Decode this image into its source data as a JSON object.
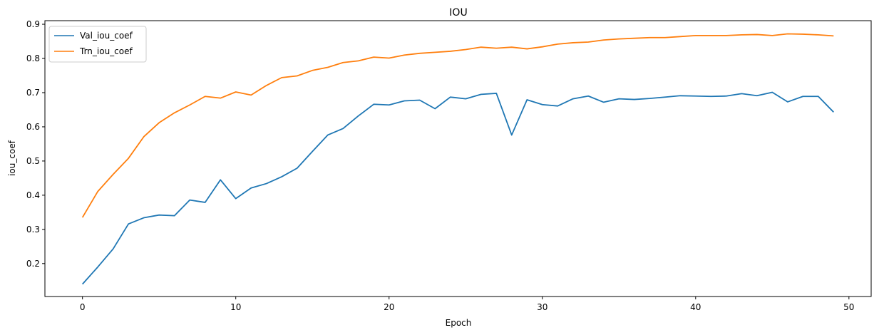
{
  "chart_data": {
    "type": "line",
    "title": "IOU",
    "xlabel": "Epoch",
    "ylabel": "iou_coef",
    "xlim": [
      -2.45,
      51.45
    ],
    "ylim": [
      0.1037,
      0.9105
    ],
    "xticks": [
      0,
      10,
      20,
      30,
      40,
      50
    ],
    "yticks": [
      0.2,
      0.3,
      0.4,
      0.5,
      0.6,
      0.7,
      0.8,
      0.9
    ],
    "grid": false,
    "legend_position": "upper-left",
    "x": [
      0,
      1,
      2,
      3,
      4,
      5,
      6,
      7,
      8,
      9,
      10,
      11,
      12,
      13,
      14,
      15,
      16,
      17,
      18,
      19,
      20,
      21,
      22,
      23,
      24,
      25,
      26,
      27,
      28,
      29,
      30,
      31,
      32,
      33,
      34,
      35,
      36,
      37,
      38,
      39,
      40,
      41,
      42,
      43,
      44,
      45,
      46,
      47,
      48,
      49
    ],
    "series": [
      {
        "name": "Val_iou_coef",
        "color": "#1f77b4",
        "values": [
          0.14,
          0.19,
          0.243,
          0.316,
          0.334,
          0.342,
          0.34,
          0.386,
          0.379,
          0.445,
          0.39,
          0.421,
          0.434,
          0.454,
          0.479,
          0.528,
          0.576,
          0.595,
          0.632,
          0.666,
          0.664,
          0.676,
          0.678,
          0.653,
          0.687,
          0.682,
          0.695,
          0.698,
          0.576,
          0.679,
          0.665,
          0.661,
          0.682,
          0.69,
          0.672,
          0.682,
          0.68,
          0.683,
          0.687,
          0.691,
          0.69,
          0.689,
          0.69,
          0.697,
          0.691,
          0.701,
          0.673,
          0.689,
          0.689,
          0.643
        ]
      },
      {
        "name": "Trn_iou_coef",
        "color": "#ff7f0e",
        "values": [
          0.335,
          0.411,
          0.461,
          0.508,
          0.571,
          0.612,
          0.641,
          0.664,
          0.689,
          0.684,
          0.702,
          0.693,
          0.721,
          0.744,
          0.749,
          0.765,
          0.774,
          0.788,
          0.793,
          0.804,
          0.801,
          0.81,
          0.815,
          0.818,
          0.821,
          0.826,
          0.833,
          0.83,
          0.833,
          0.828,
          0.834,
          0.842,
          0.846,
          0.848,
          0.854,
          0.857,
          0.859,
          0.861,
          0.861,
          0.864,
          0.867,
          0.867,
          0.867,
          0.869,
          0.87,
          0.867,
          0.872,
          0.871,
          0.869,
          0.866
        ]
      }
    ]
  }
}
